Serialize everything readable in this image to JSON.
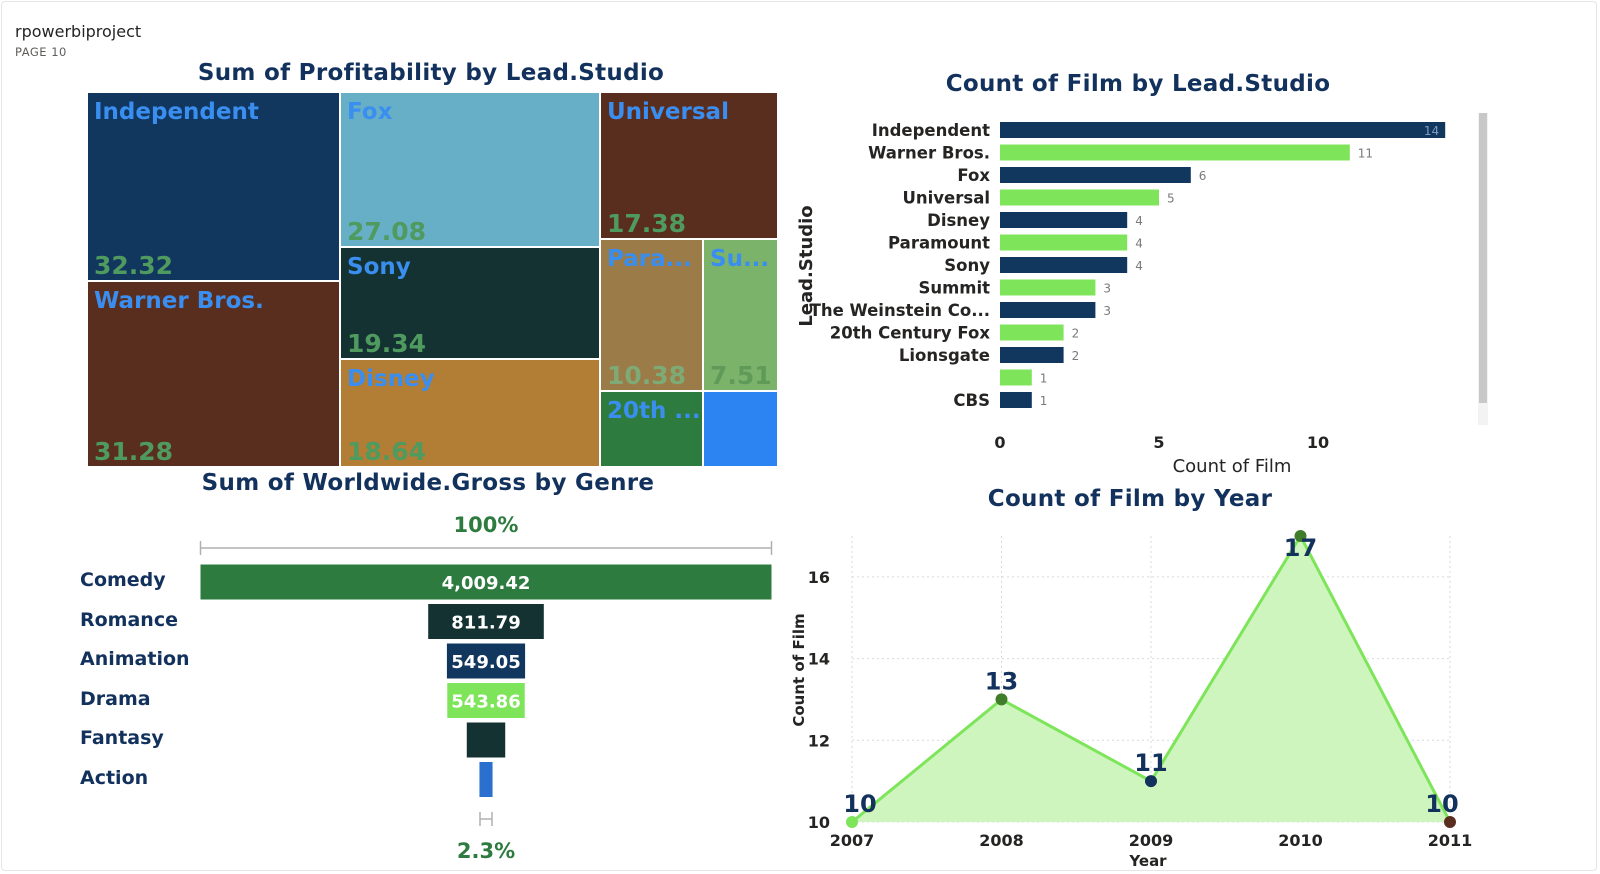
{
  "report": {
    "title": "rpowerbiproject",
    "page": "PAGE 10"
  },
  "charts": {
    "treemap_title": "Sum of Profitability by Lead.Studio",
    "studio_bar_title": "Count of Film by Lead.Studio",
    "funnel_title": "Sum of Worldwide.Gross by Genre",
    "year_line_title": "Count of Film by Year"
  },
  "colors": {
    "navy": "#12315c",
    "light_green": "#7ee55b",
    "dark_green": "#2e7b40",
    "label_blue": "#3a8ef0",
    "value_green": "#4f9a5f"
  },
  "chart_data": [
    {
      "type": "treemap",
      "title": "Sum of Profitability by Lead.Studio",
      "tiles": [
        {
          "label": "Independent",
          "value": "32.32",
          "fill": "#12375f"
        },
        {
          "label": "Fox",
          "value": "27.08",
          "fill": "#67afc6"
        },
        {
          "label": "Universal",
          "value": "17.38",
          "fill": "#5a2e1e"
        },
        {
          "label": "Warner Bros.",
          "value": "31.28",
          "fill": "#5a2e1e"
        },
        {
          "label": "Sony",
          "value": "19.34",
          "fill": "#153232"
        },
        {
          "label": "Disney",
          "value": "18.64",
          "fill": "#b27d35"
        },
        {
          "label": "Para...",
          "value": "10.38",
          "fill": "#9b7b48"
        },
        {
          "label": "Su...",
          "value": "7.51",
          "fill": "#7bb36b"
        },
        {
          "label": "20th ...",
          "value": "",
          "fill": "#2e7b40"
        },
        {
          "label": "",
          "value": "",
          "fill": "#2b84f2"
        }
      ]
    },
    {
      "type": "bar",
      "orientation": "horizontal",
      "title": "Count of Film by Lead.Studio",
      "categories": [
        "Independent",
        "Warner Bros.",
        "Fox",
        "Universal",
        "Disney",
        "Paramount",
        "Sony",
        "Summit",
        "The Weinstein Co...",
        "20th Century Fox",
        "Lionsgate",
        "",
        "CBS"
      ],
      "values": [
        14,
        11,
        6,
        5,
        4,
        4,
        4,
        3,
        3,
        2,
        2,
        1,
        1
      ],
      "bar_colors": [
        "#12375f",
        "#7ee55b",
        "#12375f",
        "#7ee55b",
        "#12375f",
        "#7ee55b",
        "#12375f",
        "#7ee55b",
        "#12375f",
        "#7ee55b",
        "#12375f",
        "#7ee55b",
        "#12375f"
      ],
      "xlabel": "Count of Film",
      "ylabel": "Lead.Studio",
      "xticks": [
        0,
        5,
        10
      ],
      "xlim": [
        0,
        14
      ]
    },
    {
      "type": "funnel",
      "title": "Sum of Worldwide.Gross by Genre",
      "categories": [
        "Comedy",
        "Romance",
        "Animation",
        "Drama",
        "Fantasy",
        "Action"
      ],
      "values": [
        4009.42,
        811.79,
        549.05,
        543.86,
        270,
        92
      ],
      "value_labels": [
        "4,009.42",
        "811.79",
        "549.05",
        "543.86",
        "",
        ""
      ],
      "bar_colors": [
        "#2e7b40",
        "#153232",
        "#12375f",
        "#7ee55b",
        "#153232",
        "#2b6fcf"
      ],
      "top_percent": "100%",
      "bottom_percent": "2.3%"
    },
    {
      "type": "area",
      "title": "Count of Film by Year",
      "x": [
        "2007",
        "2008",
        "2009",
        "2010",
        "2011"
      ],
      "y": [
        10,
        13,
        11,
        17,
        10
      ],
      "data_labels": [
        "10",
        "13",
        "11",
        "17",
        "10"
      ],
      "marker_colors": [
        "#7ee55b",
        "#3f7d2a",
        "#12315c",
        "#3f7d2a",
        "#5a2e1e"
      ],
      "xlabel": "Year",
      "ylabel": "Count of Film",
      "yticks": [
        10,
        12,
        14,
        16
      ],
      "ylim": [
        10,
        17
      ],
      "line_color": "#7ee55b",
      "fill_color": "#cdf5bd",
      "grid": true
    }
  ]
}
